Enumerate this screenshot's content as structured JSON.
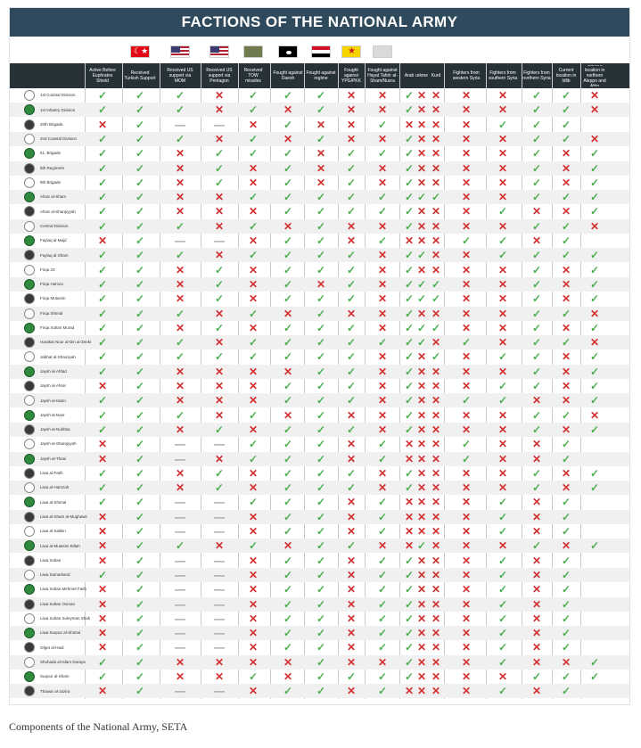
{
  "title": "FACTIONS OF THE NATIONAL ARMY",
  "caption": "Components of the National Army, SETA",
  "colors": {
    "header_bg": "#2e4a5c",
    "check": "#4caf50",
    "cross": "#d32f2f",
    "dash": "#9e9e9e"
  },
  "icons": [
    "turkey-flag-icon",
    "us-flag-icon",
    "us-flag-icon",
    "military-emblem-icon",
    "isis-flag-icon",
    "syria-flag-icon",
    "pyd-flag-icon",
    "hts-emblem-icon"
  ],
  "columns": [
    "Active Before Euphrates Shield",
    "Received Turkish Support",
    "Received US support via MOM",
    "Received US support via Pentagon",
    "Received TOW missiles",
    "Fought against Daesh",
    "Fought against regime",
    "Fought against YPG/PKK",
    "Fought against Hayat Tahrir al-Sham/Nusra",
    "Arab",
    "Turkmen",
    "Kurd",
    "Fighters from western Syria",
    "Fighters from southern Syria",
    "Fighters from northern Syria",
    "Current location in Idlib",
    "Current location in northern Aleppo and Afrin"
  ],
  "factions": [
    {
      "name": "1st Coastal Division",
      "marks": "vvvxvvvxxvxxxxvvx"
    },
    {
      "name": "1st Infantry Division",
      "marks": "vvvxvxvxxvxxxxvvx"
    },
    {
      "name": "20th Brigade",
      "marks": "xvd-dxvxxvxxxxvvv"
    },
    {
      "name": "2nd Coastal Division",
      "marks": "vvvxvxvxxvxxxxvvx"
    },
    {
      "name": "51. Brigade",
      "marks": "vvxvvvxvvvxxxxvxv"
    },
    {
      "name": "5th Regiment",
      "marks": "vvxvxvxvxvxxxxvxv"
    },
    {
      "name": "9th Brigade",
      "marks": "vvxvxvxvxvxxxxvxv"
    },
    {
      "name": "Ahrar al-Sham",
      "marks": "vvxxvvvvvvvvxxvvv"
    },
    {
      "name": "Ahrar al-Sharqiyyah",
      "marks": "vvxxxvvvvvxxxvxxv"
    },
    {
      "name": "Central Division",
      "marks": "vvvxvxvxxvxxxxvvx"
    },
    {
      "name": "Faylaq al-Majd",
      "marks": "xvd-dxvvxvxxxvvxv"
    },
    {
      "name": "Faylaq al-Sham",
      "marks": "vvvxvvvvxvvxxvvvv"
    },
    {
      "name": "Firqa 23",
      "marks": "vvxvxvvvxvxxxxvxv"
    },
    {
      "name": "Firqa Hamza",
      "marks": "vvxvxvxvxvvvxxvxv"
    },
    {
      "name": "Firqa Mutasim",
      "marks": "vvxvxvvvxvvvxxvxv"
    },
    {
      "name": "Firqa Shimal",
      "marks": "vvvxvxvxxvxxxxvvx"
    },
    {
      "name": "Firqa Sultan Murad",
      "marks": "vvxvxvvvxvvvxxvxv"
    },
    {
      "name": "Harakat Nour al-Din al-Zenki",
      "marks": "vvvxvvvvvvvxvxvvx"
    },
    {
      "name": "Jabhat al-Shamiyah",
      "marks": "vvvvvvvvxvxvxvvxv"
    },
    {
      "name": "Jaysh al-Ahfad",
      "marks": "vvxxxxvvxvxxxxvxv"
    },
    {
      "name": "Jaysh al-Ahrar",
      "marks": "xvxxxvvvxvxxxvvxv"
    },
    {
      "name": "Jaysh al-Islam",
      "marks": "vvxxxvvvxvxxvvxxv"
    },
    {
      "name": "Jaysh al-Nasr",
      "marks": "vvvxvxvxxvxxxxvvx"
    },
    {
      "name": "Jaysh al-Nukhba",
      "marks": "vvxvxvvvxvxxxxvxv"
    },
    {
      "name": "Jaysh al-Sharqiyyah",
      "marks": "xvd-dvvvxvxxxvxxv"
    },
    {
      "name": "Jaysh al-Thani",
      "marks": "xvd-xvvvxvxxxvxxv"
    },
    {
      "name": "Liwa al-Fatih",
      "marks": "vvxvxvvvxvxxxxvxv"
    },
    {
      "name": "Liwa al-Hamzah",
      "marks": "vvxvxvvvxvxxxxvxv"
    },
    {
      "name": "Liwa al-Shimal",
      "marks": "vvd-dvvvxvxxxxvxv"
    },
    {
      "name": "Liwa al-Sham al-Mughawir",
      "marks": "xvd-dxvvxvxxxxvxv"
    },
    {
      "name": "Liwa al-Salikin",
      "marks": "xvd-dxvvxvxxxxvxv"
    },
    {
      "name": "Liwa al-Mutasim Billah",
      "marks": "xvvxvxvvxxvxxxvxv"
    },
    {
      "name": "Liwa Sultan",
      "marks": "xvd-dxvvxvvxxxvxv"
    },
    {
      "name": "Liwa Samarkand",
      "marks": "vvd-dxvvxvvxxxvxv"
    },
    {
      "name": "Liwa Sultan Mehmet Fatih",
      "marks": "xvd-dxvvxvvxxxvxv"
    },
    {
      "name": "Liwa Sultan Osman",
      "marks": "xvd-dxvvxvvxxxvxv"
    },
    {
      "name": "Liwa Sultan Suleyman Shah",
      "marks": "xvd-dxvvxvvxxxvxv"
    },
    {
      "name": "Liwa Suqour al-Shimal",
      "marks": "xvd-dxvvxvvxxxvxv"
    },
    {
      "name": "Ofget al-Hadi",
      "marks": "xvd-dxvvxvvxxxvxv"
    },
    {
      "name": "Shuhada al-Islam Daraya",
      "marks": "vvxxxxvxxvxxxvxxv"
    },
    {
      "name": "Suqour al-Sham",
      "marks": "vvxxvxvvvvxxxxvvv"
    },
    {
      "name": "Thawar al-Jazira",
      "marks": "xvd-dxvvxvxxxxvxv"
    }
  ]
}
